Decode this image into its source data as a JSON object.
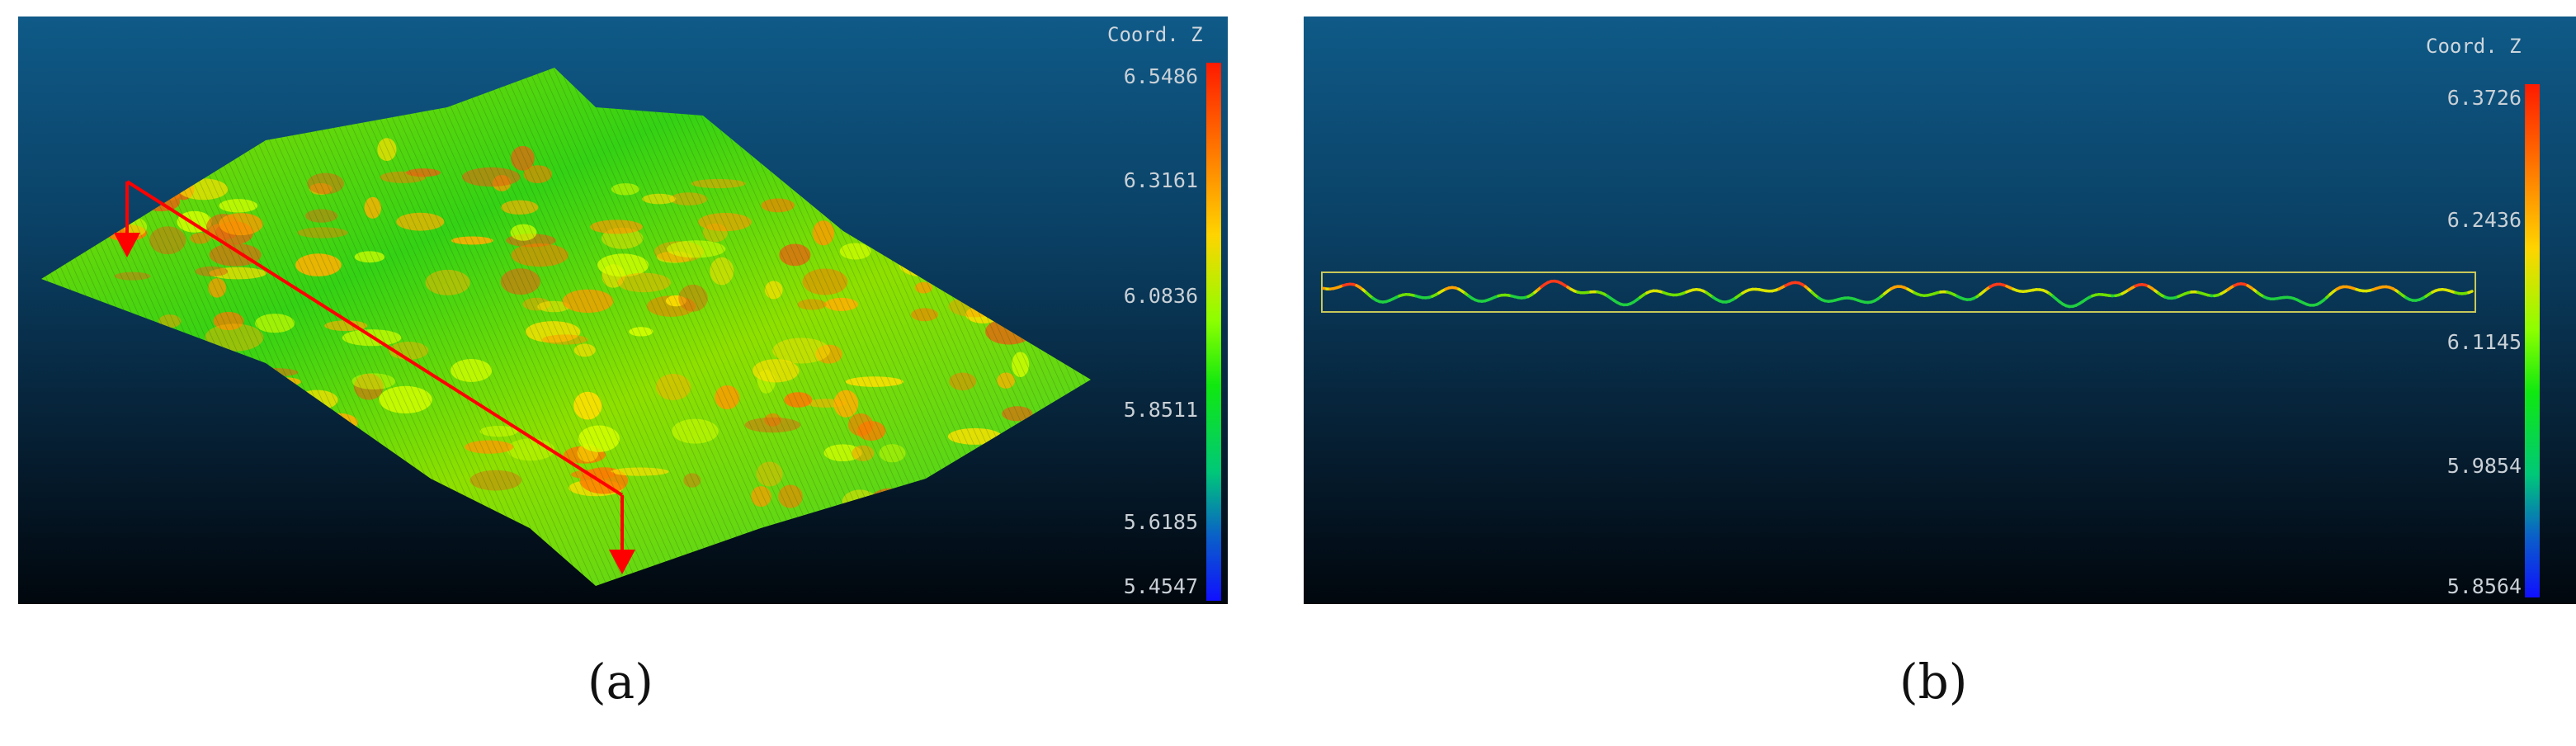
{
  "panel_a": {
    "colorbar_title": "Coord. Z",
    "ticks": [
      "6.5486",
      "6.3161",
      "6.0836",
      "5.8511",
      "5.6185",
      "5.4547"
    ]
  },
  "panel_b": {
    "colorbar_title": "Coord. Z",
    "ticks": [
      "6.3726",
      "6.2436",
      "6.1145",
      "5.9854",
      "5.8564"
    ]
  },
  "captions": {
    "a": "(a)",
    "b": "(b)"
  },
  "colors": {
    "profile_line": "#ff0000",
    "selection_box": "#c8c85a"
  }
}
